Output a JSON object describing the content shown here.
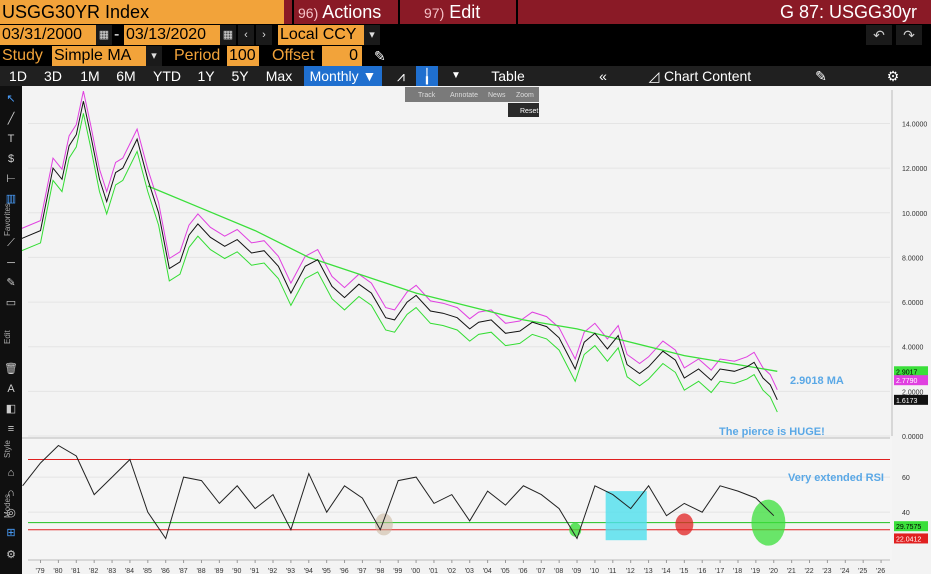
{
  "title_bar": {
    "security": "USGG30YR Index",
    "actions_num": "96)",
    "actions_label": "Actions",
    "edit_num": "97)",
    "edit_label": "Edit",
    "ticker": "G 87: USGG30yr"
  },
  "date_row": {
    "start_date": "03/31/2000",
    "separator": "-",
    "end_date": "03/13/2020",
    "currency": "Local CCY"
  },
  "study_row": {
    "study_label": "Study",
    "study_value": "Simple MA",
    "period_label": "Period",
    "period_value": "100",
    "offset_label": "Offset",
    "offset_value": "0"
  },
  "toolbar": {
    "ranges": [
      "1D",
      "3D",
      "1M",
      "6M",
      "YTD",
      "1Y",
      "5Y",
      "Max"
    ],
    "frequency": "Monthly",
    "table": "Table",
    "chart_content": "Chart Content"
  },
  "mini_toolbar": {
    "track": "Track",
    "annotate": "Annotate",
    "news": "News",
    "zoom": "Zoom",
    "reset": "Reset"
  },
  "sidebar_labels": {
    "favorites": "Favorites",
    "edit": "Edit",
    "style": "Style",
    "modes": "Modes"
  },
  "colors": {
    "price": "#111111",
    "ma100": "#3adf3a",
    "upper_band": "#e040e0",
    "lower_band": "#33dd33",
    "rsi": "#222222",
    "rsi_upper": "#e02020",
    "rsi_lower": "#20c020",
    "annotation_text": "#5aa8e6"
  },
  "chart_data": [
    {
      "type": "line",
      "name": "price",
      "x_tick_labels": [
        "'79",
        "'80",
        "'81",
        "'82",
        "'83",
        "'84",
        "'85",
        "'86",
        "'87",
        "'88",
        "'89",
        "'90",
        "'91",
        "'92",
        "'93",
        "'94",
        "'95",
        "'96",
        "'97",
        "'98",
        "'99",
        "'00",
        "'01",
        "'02",
        "'03",
        "'04",
        "'05",
        "'06",
        "'07",
        "'08",
        "'09",
        "'10",
        "'11",
        "'12",
        "'13",
        "'14",
        "'15",
        "'16",
        "'17",
        "'18",
        "'19",
        "'20",
        "'21",
        "'22",
        "'23",
        "'24",
        "'25",
        "'26"
      ],
      "ylim": [
        0,
        15.5
      ],
      "y_ticks": [
        "0.0000",
        "2.0000",
        "4.0000",
        "6.0000",
        "8.0000",
        "10.0000",
        "12.0000",
        "14.0000"
      ],
      "series": [
        {
          "name": "USGG30YR",
          "x": [
            1977.8,
            1979.0,
            1979.7,
            1980.2,
            1980.6,
            1981.0,
            1981.4,
            1981.8,
            1982.3,
            1982.7,
            1983.2,
            1983.6,
            1984.4,
            1985.0,
            1985.6,
            1986.2,
            1986.8,
            1987.3,
            1987.8,
            1988.5,
            1989.3,
            1990.0,
            1990.8,
            1991.5,
            1992.3,
            1993.0,
            1993.8,
            1994.5,
            1995.3,
            1996.0,
            1996.8,
            1997.5,
            1998.3,
            1998.8,
            1999.5,
            2000.0,
            2000.8,
            2001.5,
            2002.3,
            2003.0,
            2003.5,
            2004.2,
            2005.0,
            2005.8,
            2006.5,
            2007.3,
            2008.0,
            2008.9,
            2009.4,
            2010.0,
            2010.7,
            2011.3,
            2011.8,
            2012.5,
            2013.0,
            2013.8,
            2014.5,
            2015.0,
            2015.8,
            2016.5,
            2017.0,
            2017.8,
            2018.5,
            2018.9,
            2019.4,
            2019.8,
            2020.2
          ],
          "y": [
            8.8,
            9.2,
            12.0,
            11.5,
            13.0,
            13.5,
            15.0,
            13.5,
            11.5,
            10.5,
            11.8,
            12.0,
            13.3,
            11.5,
            10.0,
            7.5,
            7.8,
            9.0,
            9.5,
            8.9,
            8.5,
            8.8,
            8.2,
            8.3,
            7.6,
            6.4,
            7.6,
            7.9,
            6.7,
            6.2,
            6.8,
            6.4,
            5.3,
            5.2,
            6.0,
            6.3,
            5.6,
            5.5,
            5.3,
            4.8,
            5.1,
            5.2,
            4.6,
            4.7,
            5.1,
            4.9,
            4.4,
            3.0,
            4.2,
            4.6,
            3.9,
            4.5,
            3.2,
            2.8,
            3.1,
            3.8,
            3.4,
            2.6,
            3.0,
            2.5,
            3.0,
            2.9,
            3.1,
            3.3,
            2.6,
            2.3,
            1.62
          ]
        },
        {
          "name": "MA 100",
          "x": [
            1979.5,
            1983.0,
            1985.0,
            1988.0,
            1991.0,
            1994.0,
            1997.0,
            2000.0,
            2003.0,
            2006.0,
            2009.0,
            2012.0,
            2015.0,
            2018.0,
            2020.2
          ],
          "y": [
            null,
            null,
            11.2,
            10.2,
            9.2,
            8.0,
            7.2,
            6.4,
            5.8,
            5.2,
            4.8,
            4.2,
            3.6,
            3.2,
            2.9
          ]
        }
      ],
      "last_values": [
        "2.9017",
        "2.7790",
        "1.6173"
      ],
      "annotations": [
        "2.9018 MA",
        "The pierce is HUGE!"
      ]
    },
    {
      "type": "line",
      "name": "RSI",
      "ylim": [
        15,
        80
      ],
      "y_ticks": [
        "40",
        "60"
      ],
      "reference_lines": [
        70,
        30
      ],
      "series": [
        {
          "name": "RSI",
          "x": [
            1978,
            1979,
            1980,
            1981,
            1982,
            1983,
            1984,
            1985,
            1986,
            1987,
            1988,
            1989,
            1990,
            1991,
            1992,
            1993,
            1994,
            1995,
            1996,
            1997,
            1998,
            1999,
            2000,
            2001,
            2002,
            2003,
            2004,
            2005,
            2006,
            2007,
            2008,
            2009,
            2010,
            2011,
            2012,
            2013,
            2014,
            2015,
            2016,
            2017,
            2018,
            2019,
            2020
          ],
          "y": [
            55,
            68,
            78,
            72,
            50,
            60,
            70,
            40,
            25,
            60,
            58,
            45,
            55,
            42,
            50,
            30,
            62,
            40,
            55,
            48,
            30,
            58,
            60,
            45,
            50,
            35,
            52,
            44,
            55,
            50,
            42,
            25,
            55,
            50,
            42,
            55,
            38,
            45,
            40,
            55,
            52,
            48,
            38
          ]
        }
      ],
      "last_values": [
        "29.7575",
        "22.0412"
      ],
      "annotations": [
        "Very extended RSI"
      ]
    }
  ]
}
